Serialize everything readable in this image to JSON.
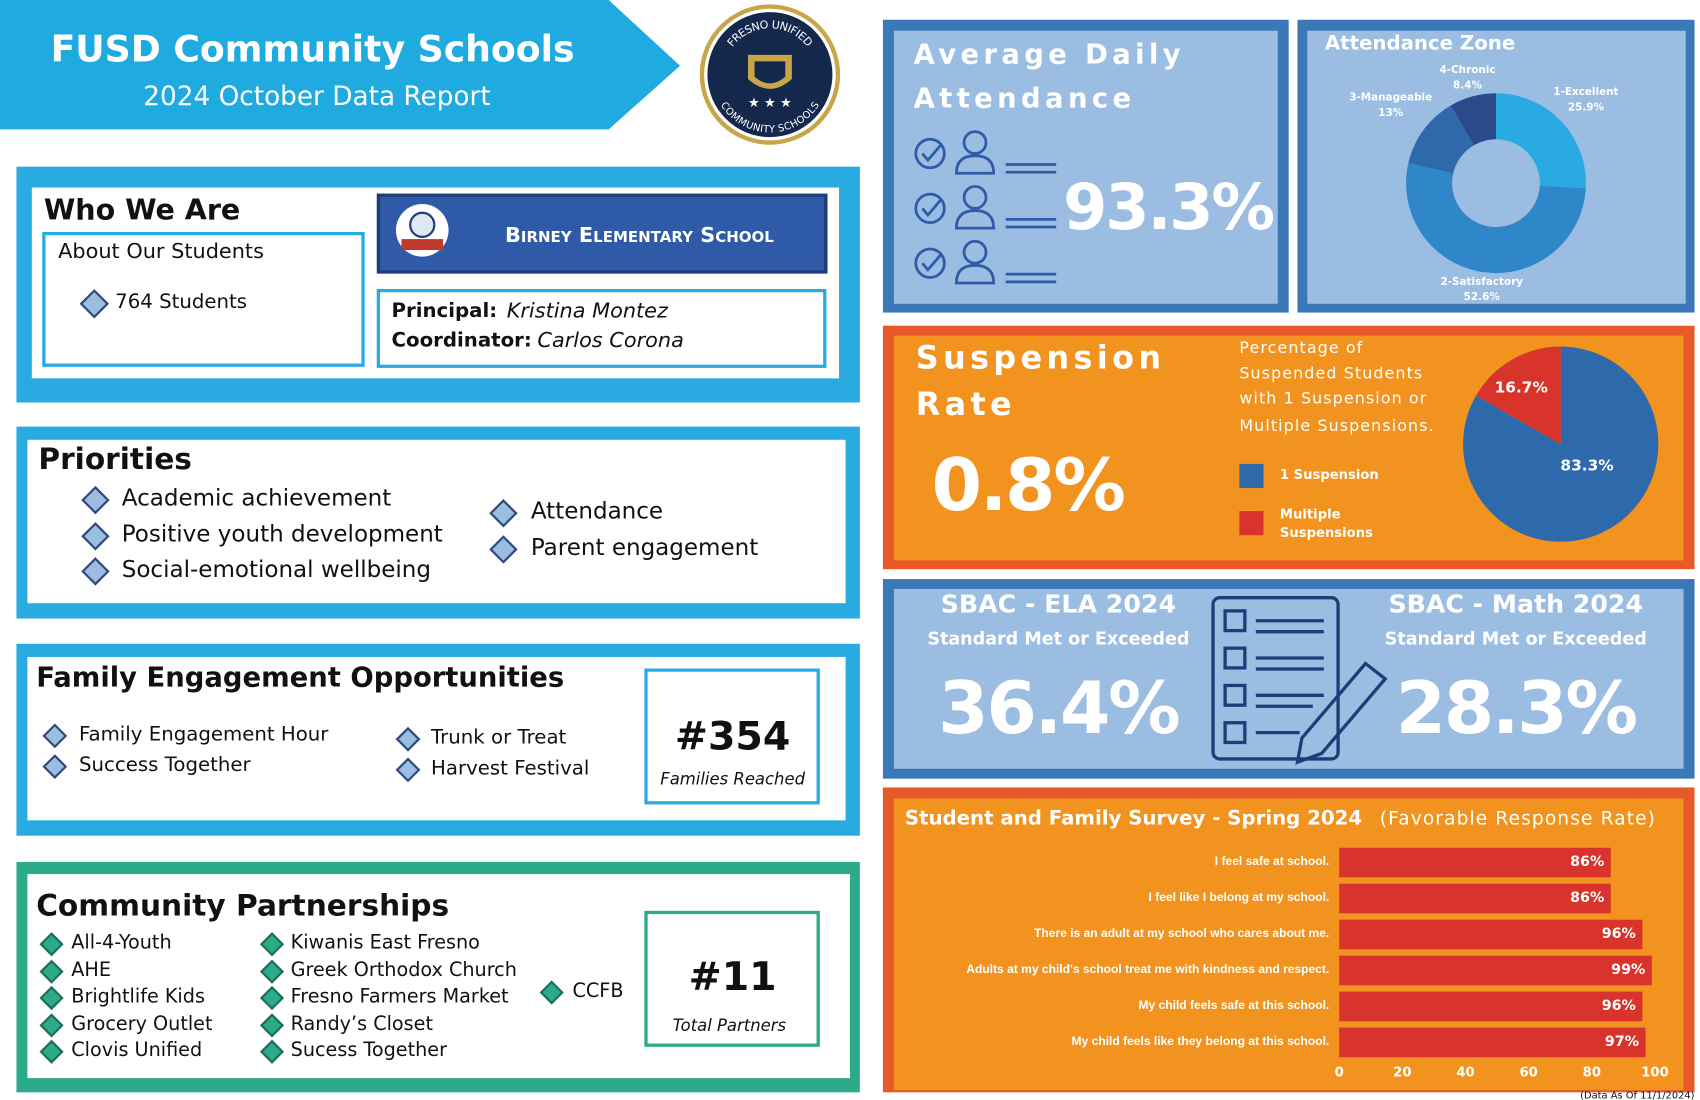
{
  "header": {
    "title": "FUSD Community Schools",
    "subtitle": "2024 October Data Report",
    "logo_top": "FRESNO UNIFIED",
    "logo_bottom": "COMMUNITY SCHOOLS"
  },
  "who_we_are": {
    "title": "Who We Are",
    "about_title": "About Our Students",
    "students": "764 Students",
    "school": "Birney Elementary School",
    "principal_label": "Principal:",
    "principal": "Kristina Montez",
    "coordinator_label": "Coordinator:",
    "coordinator": "Carlos Corona"
  },
  "priorities": {
    "title": "Priorities",
    "items": [
      "Academic achievement",
      "Positive youth development",
      "Social-emotional wellbeing",
      "Attendance",
      "Parent engagement"
    ]
  },
  "family_engagement": {
    "title": "Family Engagement Opportunities",
    "items": [
      "Family Engagement Hour",
      "Success Together",
      "Trunk or Treat",
      "Harvest Festival"
    ],
    "count": "#354",
    "count_label": "Families Reached"
  },
  "partnerships": {
    "title": "Community Partnerships",
    "items": [
      "All-4-Youth",
      "AHE",
      "Brightlife Kids",
      "Grocery Outlet",
      "Clovis Unified",
      "Kiwanis East Fresno",
      "Greek Orthodox Church",
      "Fresno Farmers Market",
      "Randy’s Closet",
      "Sucess Together",
      "CCFB"
    ],
    "count": "#11",
    "count_label": "Total Partners"
  },
  "attendance": {
    "title": [
      "Average Daily",
      "Attendance"
    ],
    "value": "93.3%"
  },
  "suspension": {
    "title": [
      "Suspension",
      "Rate"
    ],
    "value": "0.8%"
  },
  "sbac": {
    "ela_title": "SBAC - ELA 2024",
    "ela_subtitle": "Standard Met or Exceeded",
    "ela_value": "36.4%",
    "math_title": "SBAC - Math 2024",
    "math_subtitle": "Standard Met or Exceeded",
    "math_value": "28.3%"
  },
  "footnote": "(Data As Of 11/1/2024)",
  "chart_data": [
    {
      "type": "donut",
      "title": "Attendance Zone",
      "categories": [
        "1-Excellent",
        "2-Satisfactory",
        "3-Manageable",
        "4-Chronic"
      ],
      "values": [
        25.9,
        52.6,
        13,
        8.4
      ],
      "value_labels": [
        "25.9%",
        "52.6%",
        "13%",
        "8.4%"
      ],
      "colors": [
        "#29abe2",
        "#2f86c8",
        "#2e6aab",
        "#2a4a8a"
      ]
    },
    {
      "type": "pie",
      "title": [
        "Percentage of",
        "Suspended Students",
        "with 1 Suspension or",
        "Multiple Suspensions."
      ],
      "categories": [
        "1 Suspension",
        "Multiple Suspensions"
      ],
      "values": [
        83.3,
        16.7
      ],
      "value_labels": [
        "83.3%",
        "16.7%"
      ],
      "colors": [
        "#2e6aab",
        "#d9342b"
      ]
    },
    {
      "type": "bar",
      "orientation": "horizontal",
      "title": "Student and Family Survey - Spring 2024",
      "subtitle": "(Favorable Response Rate)",
      "categories": [
        "I feel safe at school.",
        "I feel like I belong at my school.",
        "There is an adult at my school who cares about me.",
        "Adults at my child's school treat me with kindness and respect.",
        "My child feels safe at this school.",
        "My child feels like they belong at this school."
      ],
      "values": [
        86,
        86,
        96,
        99,
        96,
        97
      ],
      "value_labels": [
        "86%",
        "86%",
        "96%",
        "99%",
        "96%",
        "97%"
      ],
      "xlim": [
        0,
        100
      ],
      "xticks": [
        0,
        20,
        40,
        60,
        80,
        100
      ],
      "color": "#d9342b"
    }
  ]
}
